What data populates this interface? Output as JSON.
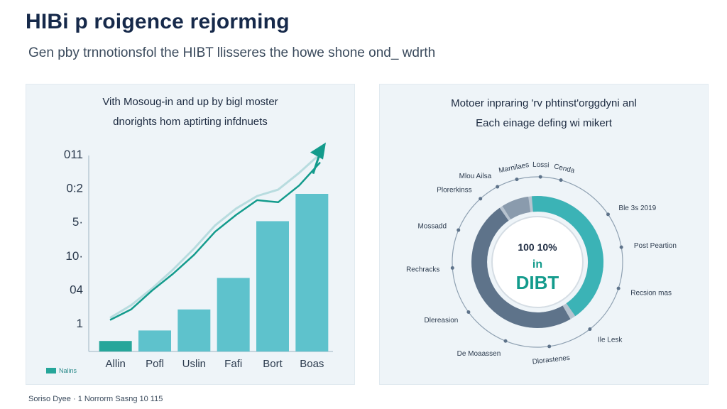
{
  "header": {
    "title": "HIBi p roigence rejorming",
    "subtitle": "Gen pby trnnotionsfol the HIBT llisseres the howe shone ond_ wdrth"
  },
  "footer": {
    "text": "Soriso Dyee · 1 Norrorm Sasng 10 115"
  },
  "colors": {
    "bar": "#5ec2cc",
    "bar_dark": "#26a69a",
    "line": "#139b8c",
    "line_shadow": "#b8dcdf",
    "ring_teal": "#3bb3b6",
    "ring_slate": "#5e738a",
    "ring_light": "#b7c3cf"
  },
  "chart_data": [
    {
      "type": "bar",
      "title": "",
      "caption_lines": [
        "Vith Mosoug-in and up by bigl moster",
        "dnorights hom aptirting infdnuets"
      ],
      "y_tick_labels": [
        "1",
        "04",
        "10·",
        "5·",
        "0:2",
        "011"
      ],
      "categories": [
        "Allin",
        "Pofl",
        "Uslin",
        "Fafi",
        "Bort",
        "Boas"
      ],
      "values": [
        5,
        10,
        20,
        35,
        62,
        75
      ],
      "trend": [
        15,
        20,
        29,
        37,
        46,
        57,
        65,
        72,
        71,
        79,
        90
      ],
      "trend_shadow": [
        16,
        22,
        30,
        39,
        49,
        60,
        68,
        74,
        77,
        85,
        94
      ],
      "ylim": [
        0,
        100
      ],
      "legend": [
        {
          "name": "Nalins"
        }
      ],
      "xlabel": "",
      "ylabel": ""
    },
    {
      "type": "pie",
      "title": "",
      "caption_lines": [
        "Motoer inpraring 'rv phtinst'orggdyni anl",
        "Each einage defing wi mikert"
      ],
      "center_lines": [
        "100 10%",
        "in",
        "DIBT"
      ],
      "radial_labels": [
        "Mlou Ailsa",
        "Marnilaes",
        "Lossi",
        "Cenda",
        "Ble 3s 2019",
        "Post Peartion",
        "Recsion mas",
        "Ile Lesk",
        "Dlorastenes",
        "De Moaassen",
        "Dlereasion",
        "Rechracks",
        "Mossadd",
        "Plorerkinss"
      ]
    }
  ]
}
